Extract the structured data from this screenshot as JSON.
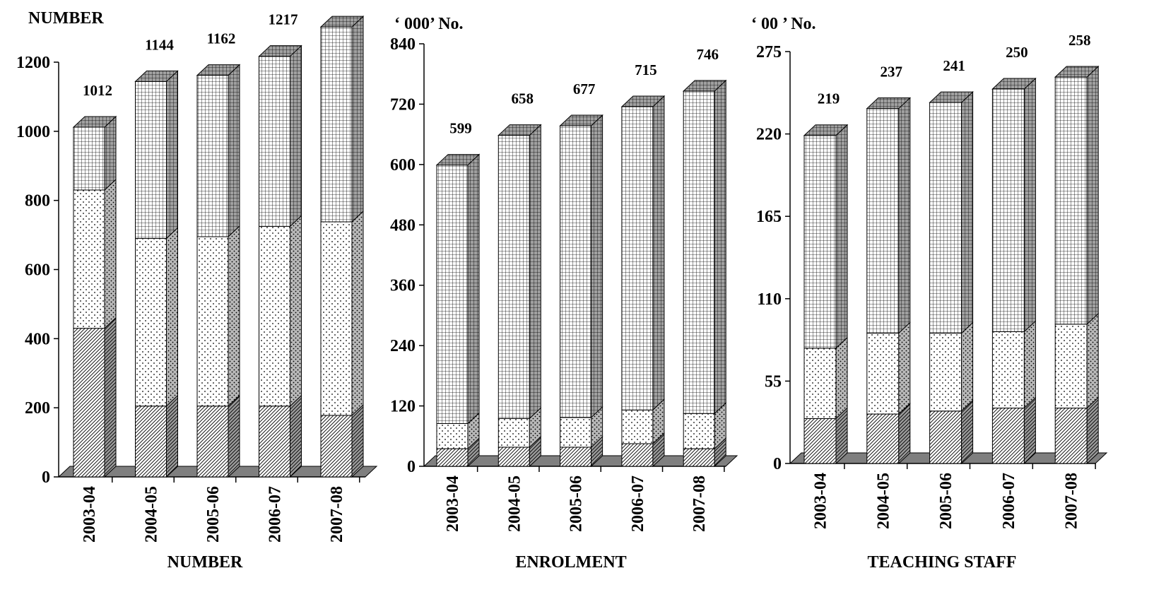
{
  "chart_data": [
    {
      "type": "bar",
      "stacked": true,
      "unit_label": "NUMBER",
      "xlabel": "NUMBER",
      "categories": [
        "2003-04",
        "2004-05",
        "2005-06",
        "2006-07",
        "2007-08"
      ],
      "ylim": [
        0,
        1200
      ],
      "yticks": [
        "0",
        "200",
        "400",
        "600",
        "800",
        "1000",
        "1200"
      ],
      "segments": [
        {
          "pattern": "diagonal",
          "values": [
            430,
            205,
            205,
            205,
            178
          ]
        },
        {
          "pattern": "dots",
          "values": [
            400,
            485,
            490,
            520,
            560
          ]
        },
        {
          "pattern": "grid",
          "values": [
            182,
            454,
            467,
            492,
            564
          ]
        }
      ],
      "totals": [
        "1012",
        "1144",
        "1162",
        "1217",
        "1302"
      ]
    },
    {
      "type": "bar",
      "stacked": true,
      "unit_label": "‘ 000’ No.",
      "xlabel": "ENROLMENT",
      "categories": [
        "2003-04",
        "2004-05",
        "2005-06",
        "2006-07",
        "2007-08"
      ],
      "ylim": [
        0,
        840
      ],
      "yticks": [
        "0",
        "120",
        "240",
        "360",
        "480",
        "600",
        "720",
        "840"
      ],
      "segments": [
        {
          "pattern": "diagonal",
          "values": [
            35,
            38,
            38,
            45,
            35
          ]
        },
        {
          "pattern": "dots",
          "values": [
            50,
            57,
            59,
            67,
            70
          ]
        },
        {
          "pattern": "grid",
          "values": [
            514,
            563,
            580,
            603,
            641
          ]
        }
      ],
      "totals": [
        "599",
        "658",
        "677",
        "715",
        "746"
      ]
    },
    {
      "type": "bar",
      "stacked": true,
      "unit_label": "‘ 00 ’  No.",
      "xlabel": "TEACHING   STAFF",
      "categories": [
        "2003-04",
        "2004-05",
        "2005-06",
        "2006-07",
        "2007-08"
      ],
      "ylim": [
        0,
        275
      ],
      "yticks": [
        "0",
        "55",
        "110",
        "165",
        "220",
        "275"
      ],
      "segments": [
        {
          "pattern": "diagonal",
          "values": [
            30,
            33,
            35,
            37,
            37
          ]
        },
        {
          "pattern": "dots",
          "values": [
            47,
            54,
            52,
            51,
            56
          ]
        },
        {
          "pattern": "grid",
          "values": [
            142,
            150,
            154,
            162,
            165
          ]
        }
      ],
      "totals": [
        "219",
        "237",
        "241",
        "250",
        "258"
      ]
    }
  ]
}
